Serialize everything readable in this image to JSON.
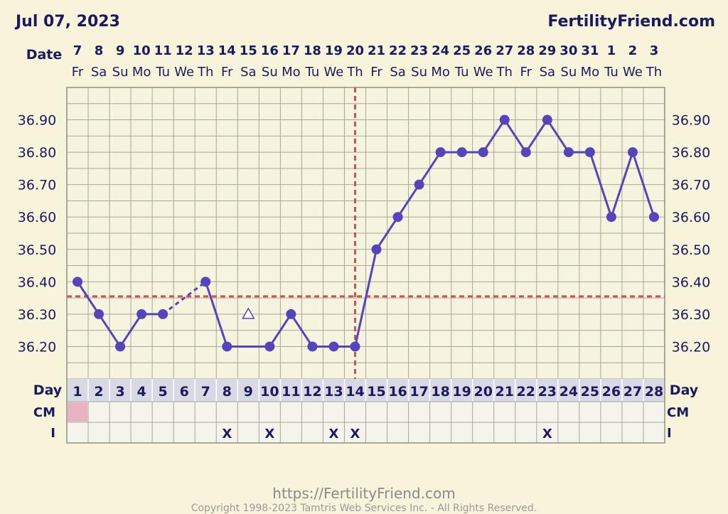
{
  "header": {
    "date": "Jul 07, 2023",
    "site": "FertilityFriend.com"
  },
  "footer": {
    "url": "https://FertilityFriend.com",
    "copyright": "Copyright 1998-2023 Tamtris Web Services Inc. - All Rights Reserved."
  },
  "chart_data": {
    "type": "line",
    "date_label": "Date",
    "dates": [
      "7",
      "8",
      "9",
      "10",
      "11",
      "12",
      "13",
      "14",
      "15",
      "16",
      "17",
      "18",
      "19",
      "20",
      "21",
      "22",
      "23",
      "24",
      "25",
      "26",
      "27",
      "28",
      "29",
      "30",
      "31",
      "1",
      "2",
      "3"
    ],
    "weekdays": [
      "Fr",
      "Sa",
      "Su",
      "Mo",
      "Tu",
      "We",
      "Th",
      "Fr",
      "Sa",
      "Su",
      "Mo",
      "Tu",
      "We",
      "Th",
      "Fr",
      "Sa",
      "Su",
      "Mo",
      "Tu",
      "We",
      "Th",
      "Fr",
      "Sa",
      "Su",
      "Mo",
      "Tu",
      "We",
      "Th"
    ],
    "day_label": "Day",
    "days": [
      "1",
      "2",
      "3",
      "4",
      "5",
      "6",
      "7",
      "8",
      "9",
      "10",
      "11",
      "12",
      "13",
      "14",
      "15",
      "16",
      "17",
      "18",
      "19",
      "20",
      "21",
      "22",
      "23",
      "24",
      "25",
      "26",
      "27",
      "28"
    ],
    "y_ticks": [
      "36.90",
      "36.80",
      "36.70",
      "36.60",
      "36.50",
      "36.40",
      "36.30",
      "36.20"
    ],
    "ylim": [
      36.1,
      37.0
    ],
    "temperatures": [
      36.4,
      36.3,
      36.2,
      36.3,
      36.3,
      null,
      36.4,
      36.2,
      36.3,
      36.2,
      36.3,
      36.2,
      36.2,
      36.2,
      36.5,
      36.6,
      36.7,
      36.8,
      36.8,
      36.8,
      36.9,
      36.8,
      36.9,
      36.8,
      36.8,
      36.6,
      36.8,
      36.6
    ],
    "discarded_days": [
      9
    ],
    "coverline": 36.355,
    "ovulation_day": 14,
    "grid": true,
    "rows": [
      {
        "label": "CM",
        "marks": [
          "",
          "",
          "",
          "",
          "",
          "",
          "",
          "",
          "",
          "",
          "",
          "",
          "",
          "",
          "",
          "",
          "",
          "",
          "",
          "",
          "",
          "",
          "",
          "",
          "",
          "",
          "",
          ""
        ],
        "highlight_days": [
          1
        ]
      },
      {
        "label": "I",
        "marks": [
          "",
          "",
          "",
          "",
          "",
          "",
          "",
          "X",
          "",
          "X",
          "",
          "",
          "X",
          "X",
          "",
          "",
          "",
          "",
          "",
          "",
          "",
          "",
          "X",
          "",
          "",
          "",
          "",
          ""
        ],
        "highlight_days": []
      }
    ],
    "colors": {
      "line": "#5544bb",
      "coverline": "#c9544f",
      "grid": "#a8a898",
      "plot_bg": "#f6f3df",
      "text": "#1c1a5e",
      "row_bg": "#f4f3ec",
      "day_bg": "#d9d9e6",
      "cm_highlight": "#e8b4c4"
    }
  }
}
